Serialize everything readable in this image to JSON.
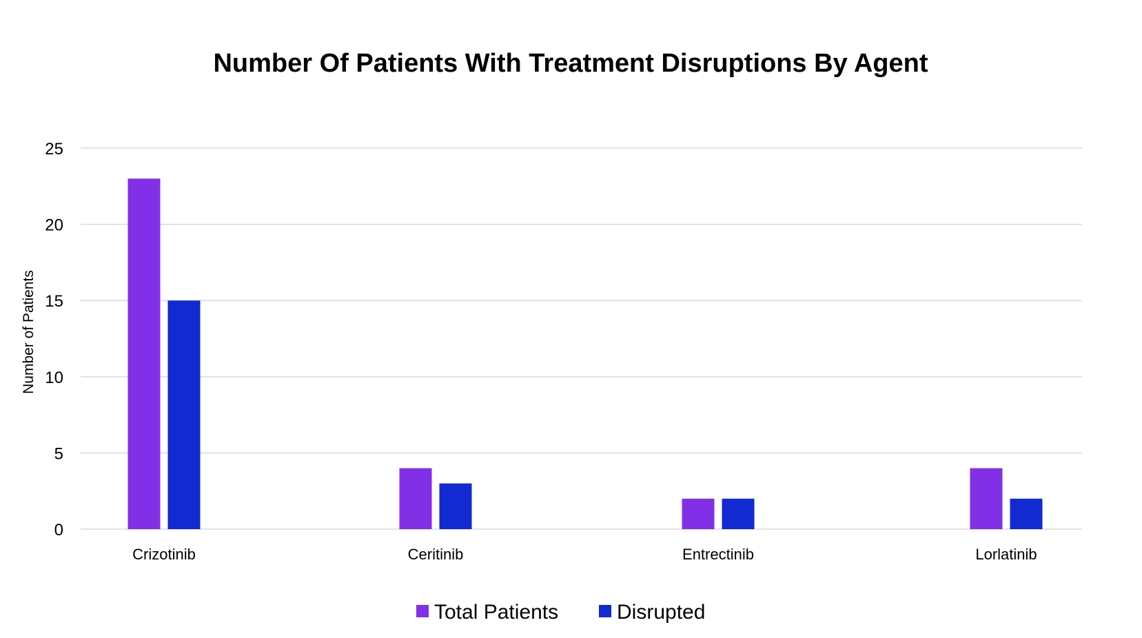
{
  "chart_data": {
    "type": "bar",
    "title": "Number Of Patients With Treatment Disruptions By Agent",
    "xlabel": "",
    "ylabel": "Number of Patients",
    "categories": [
      "Crizotinib",
      "Ceritinib",
      "Entrectinib",
      "Lorlatinib"
    ],
    "series": [
      {
        "name": "Total Patients",
        "values": [
          23,
          4,
          2,
          4
        ],
        "color": "#8230e8"
      },
      {
        "name": "Disrupted",
        "values": [
          15,
          3,
          2,
          2
        ],
        "color": "#112ad1"
      }
    ],
    "ylim": [
      0,
      25
    ],
    "yticks": [
      0,
      5,
      10,
      15,
      20,
      25
    ],
    "grid": true,
    "legend": "bottom"
  }
}
